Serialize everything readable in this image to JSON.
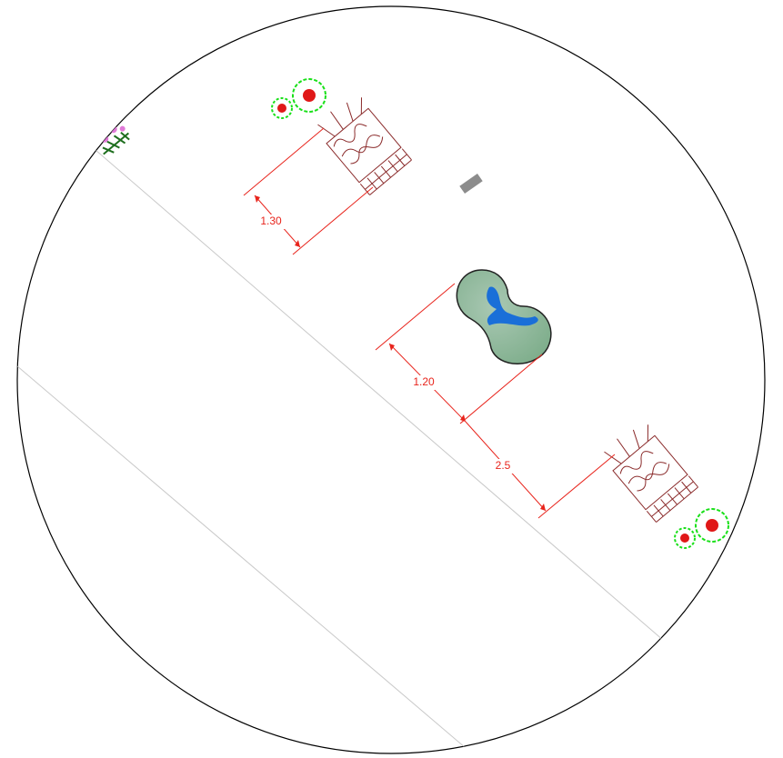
{
  "dimensions": [
    {
      "label": "1.30"
    },
    {
      "label": "1.20"
    },
    {
      "label": "2.5"
    }
  ]
}
